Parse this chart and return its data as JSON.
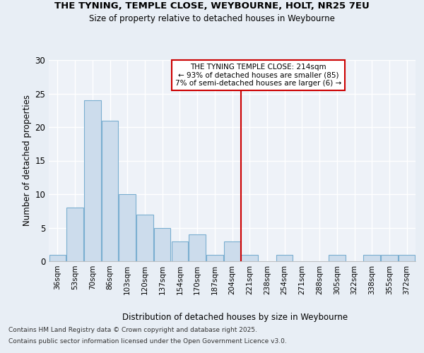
{
  "title1": "THE TYNING, TEMPLE CLOSE, WEYBOURNE, HOLT, NR25 7EU",
  "title2": "Size of property relative to detached houses in Weybourne",
  "xlabel": "Distribution of detached houses by size in Weybourne",
  "ylabel": "Number of detached properties",
  "categories": [
    "36sqm",
    "53sqm",
    "70sqm",
    "86sqm",
    "103sqm",
    "120sqm",
    "137sqm",
    "154sqm",
    "170sqm",
    "187sqm",
    "204sqm",
    "221sqm",
    "238sqm",
    "254sqm",
    "271sqm",
    "288sqm",
    "305sqm",
    "322sqm",
    "338sqm",
    "355sqm",
    "372sqm"
  ],
  "values": [
    1,
    8,
    24,
    21,
    10,
    7,
    5,
    3,
    4,
    1,
    3,
    1,
    0,
    1,
    0,
    0,
    1,
    0,
    1,
    1,
    1
  ],
  "bar_color": "#ccdcec",
  "bar_edge_color": "#7aaed0",
  "vline_color": "#cc0000",
  "annotation_title": "THE TYNING TEMPLE CLOSE: 214sqm",
  "annotation_line1": "← 93% of detached houses are smaller (85)",
  "annotation_line2": "7% of semi-detached houses are larger (6) →",
  "annotation_box_edge": "#cc0000",
  "ylim": [
    0,
    30
  ],
  "yticks": [
    0,
    5,
    10,
    15,
    20,
    25,
    30
  ],
  "footer1": "Contains HM Land Registry data © Crown copyright and database right 2025.",
  "footer2": "Contains public sector information licensed under the Open Government Licence v3.0.",
  "bg_color": "#e8eef5",
  "plot_bg_color": "#eef2f8",
  "grid_color": "#ffffff"
}
